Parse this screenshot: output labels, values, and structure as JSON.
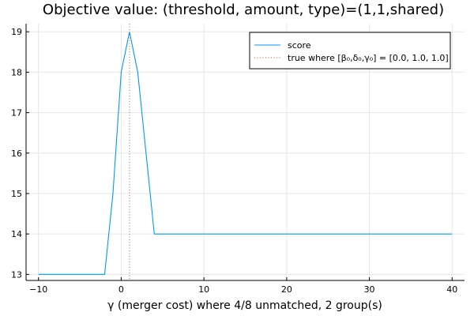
{
  "chart_data": {
    "type": "line",
    "title": "Objective value: (threshold, amount, type)=(1,1,shared)",
    "xlabel": "γ (merger cost) where 4/8 unmatched, 2 group(s)",
    "ylabel": "",
    "xlim": [
      -11.5,
      41.5
    ],
    "ylim": [
      12.85,
      19.2
    ],
    "xticks": [
      -10,
      0,
      10,
      20,
      30,
      40
    ],
    "xtick_labels": [
      "−10",
      "0",
      "10",
      "20",
      "30",
      "40"
    ],
    "yticks": [
      13,
      14,
      15,
      16,
      17,
      18,
      19
    ],
    "ytick_labels": [
      "13",
      "14",
      "15",
      "16",
      "17",
      "18",
      "19"
    ],
    "grid": true,
    "legend_position": "top-right",
    "series": [
      {
        "name": "score",
        "color": "#009af9",
        "style": "solid",
        "x": [
          -10,
          -2,
          -1,
          0,
          1,
          2,
          3,
          4,
          40
        ],
        "y": [
          13,
          13,
          15,
          18,
          19,
          18,
          16,
          14,
          14
        ]
      }
    ],
    "vline": {
      "name": "true where [β₀,δ₀,γ₀] = [0.0, 1.0, 1.0]",
      "color": "#e26f46",
      "style": "dotted",
      "x": 1
    }
  }
}
